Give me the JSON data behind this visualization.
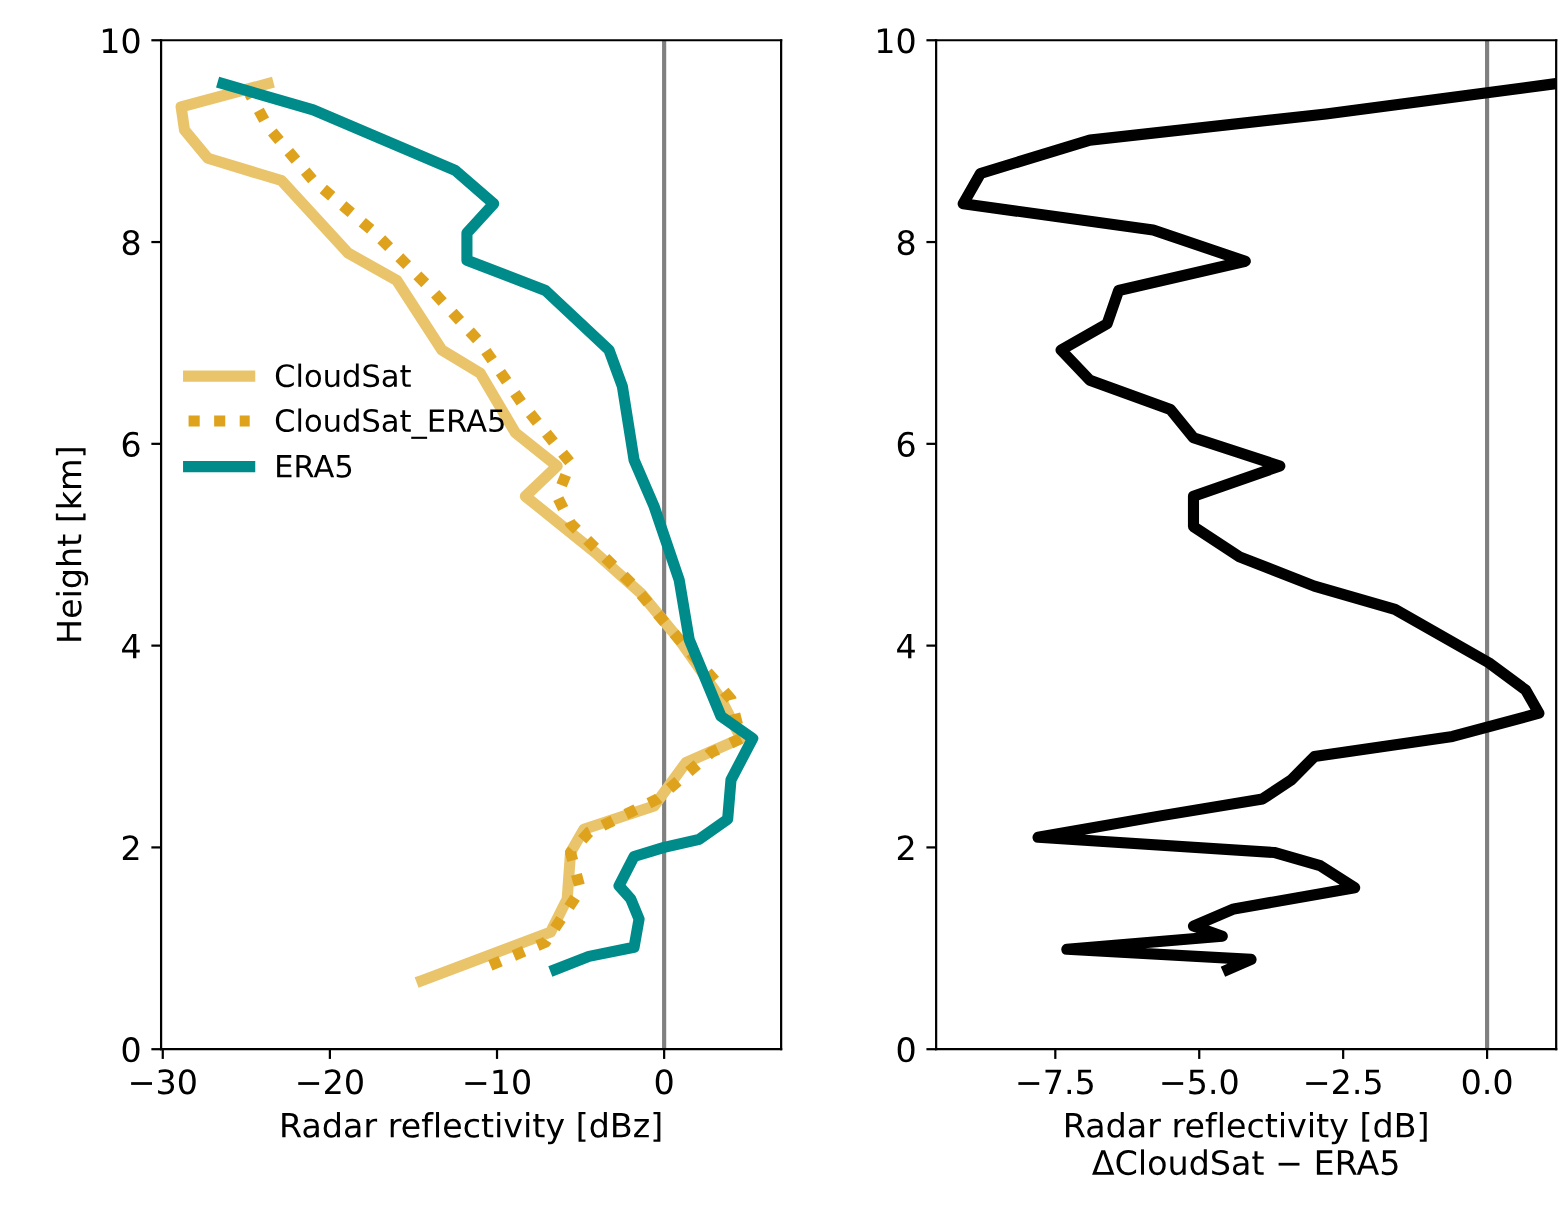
{
  "chart_data": [
    {
      "type": "line",
      "ylabel": "Height [km]",
      "xlabel": "Radar reflectivity [dBz]",
      "xlim": [
        -30.1,
        7.0
      ],
      "ylim": [
        0,
        10
      ],
      "xticks": [
        {
          "value": -30,
          "label": "−30"
        },
        {
          "value": -20,
          "label": "−20"
        },
        {
          "value": -10,
          "label": "−10"
        },
        0
      ],
      "yticks": [
        0,
        2,
        4,
        6,
        8,
        10
      ],
      "legend": "center left",
      "grid": false,
      "ref_lines": [
        {
          "axis": "x",
          "value": 0,
          "color": "#808080"
        }
      ],
      "series": [
        {
          "name": "CloudSat",
          "color": "#e9c46a",
          "line_style": "solid",
          "x": [
            -14.5,
            -6.8,
            -5.8,
            -5.6,
            -4.8,
            -0.6,
            1.3,
            4.6,
            3.4,
            0.9,
            -1.4,
            -4.1,
            -8.3,
            -6.4,
            -8.9,
            -11.0,
            -13.3,
            -16.0,
            -18.9,
            -22.9,
            -27.3,
            -28.7,
            -28.9,
            -23.7
          ],
          "values": [
            0.68,
            1.16,
            1.49,
            1.95,
            2.18,
            2.41,
            2.84,
            3.08,
            3.47,
            4.06,
            4.52,
            4.92,
            5.48,
            5.78,
            6.11,
            6.7,
            6.93,
            7.62,
            7.89,
            8.61,
            8.83,
            9.11,
            9.34,
            9.57
          ]
        },
        {
          "name": "CloudSat_ERA5",
          "color": "#dea21c",
          "line_style": "dotted",
          "x": [
            -10.4,
            -7.1,
            -5.0,
            -5.6,
            -4.5,
            -0.4,
            2.8,
            4.6,
            4.0,
            0.9,
            -1.8,
            -5.6,
            -6.4,
            -5.6,
            -8.5,
            -11.0,
            -14.1,
            -17.3,
            -21.0,
            -23.7,
            -24.8
          ],
          "values": [
            0.83,
            1.06,
            1.58,
            1.95,
            2.15,
            2.48,
            2.94,
            3.08,
            3.47,
            4.06,
            4.59,
            5.21,
            5.48,
            5.81,
            6.4,
            7.0,
            7.56,
            8.09,
            8.61,
            9.14,
            9.47
          ]
        },
        {
          "name": "ERA5",
          "color": "#008b8b",
          "line_style": "solid",
          "x": [
            -6.5,
            -4.5,
            -1.8,
            -1.5,
            -2.0,
            -2.7,
            -1.8,
            0,
            2.1,
            3.8,
            4.0,
            5.3,
            3.4,
            1.5,
            0.9,
            -0.6,
            -1.8,
            -2.5,
            -3.3,
            -7.1,
            -11.8,
            -11.8,
            -10.2,
            -12.5,
            -21.0,
            -26.4
          ],
          "values": [
            0.79,
            0.92,
            1.01,
            1.29,
            1.49,
            1.62,
            1.91,
            2.0,
            2.08,
            2.28,
            2.67,
            3.08,
            3.3,
            4.06,
            4.65,
            5.38,
            5.84,
            6.57,
            6.93,
            7.52,
            7.82,
            8.09,
            8.38,
            8.71,
            9.31,
            9.57
          ]
        }
      ]
    },
    {
      "type": "line",
      "xlabel": "Radar reflectivity [dB]\nΔCloudSat − ERA5",
      "xlim": [
        -9.57,
        1.2
      ],
      "ylim": [
        0,
        10
      ],
      "xticks": [
        {
          "value": -7.5,
          "label": "−7.5"
        },
        {
          "value": -5.0,
          "label": "−5.0"
        },
        {
          "value": -2.5,
          "label": "−2.5"
        },
        {
          "value": 0.0,
          "label": "0.0"
        }
      ],
      "yticks": [
        0,
        2,
        4,
        6,
        8,
        10
      ],
      "grid": false,
      "ref_lines": [
        {
          "axis": "x",
          "value": 0,
          "color": "#808080"
        }
      ],
      "series": [
        {
          "color": "#000000",
          "line_style": "solid",
          "x": [
            1.19,
            -2.8,
            -6.9,
            -8.8,
            -9.1,
            -5.8,
            -4.2,
            -6.4,
            -6.6,
            -7.4,
            -6.9,
            -5.5,
            -5.1,
            -3.6,
            -5.1,
            -5.1,
            -4.3,
            -3.0,
            -1.6,
            0.03,
            0.67,
            0.9,
            -0.6,
            -3.0,
            -3.4,
            -3.9,
            -5.7,
            -7.8,
            -3.7,
            -2.9,
            -2.3,
            -4.4,
            -5.1,
            -4.6,
            -7.3,
            -4.1,
            -4.5
          ],
          "values": [
            9.57,
            9.27,
            9.01,
            8.68,
            8.38,
            8.12,
            7.81,
            7.52,
            7.19,
            6.93,
            6.63,
            6.34,
            6.06,
            5.78,
            5.48,
            5.18,
            4.88,
            4.59,
            4.36,
            3.83,
            3.56,
            3.33,
            3.1,
            2.9,
            2.67,
            2.48,
            2.31,
            2.1,
            1.95,
            1.82,
            1.6,
            1.39,
            1.22,
            1.12,
            0.99,
            0.89,
            0.79
          ]
        }
      ]
    }
  ]
}
